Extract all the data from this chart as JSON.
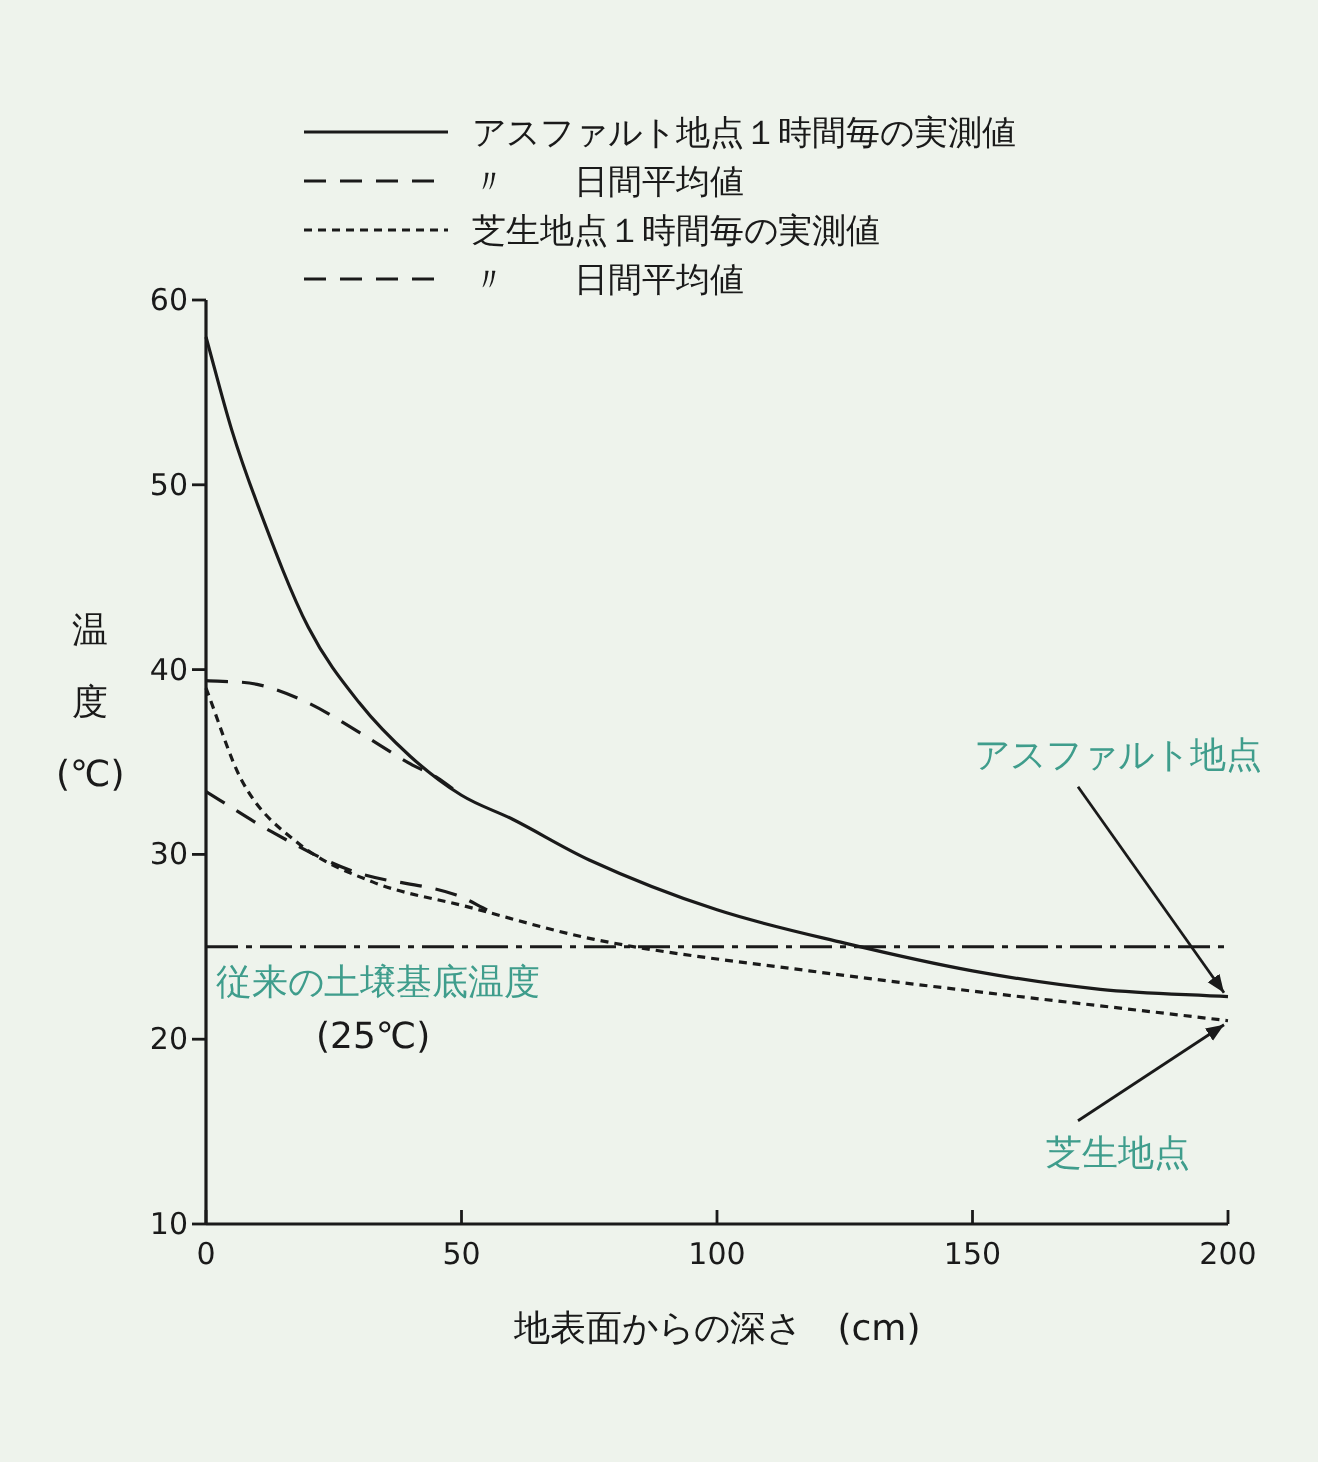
{
  "chart_data": {
    "type": "line",
    "xlabel": "地表面からの深さ　(cm)",
    "ylabel": "温度(℃)",
    "xlim": [
      0,
      200
    ],
    "xticks": [
      0,
      50,
      100,
      150,
      200
    ],
    "ylim": [
      10,
      60
    ],
    "yticks": [
      10,
      20,
      30,
      40,
      50,
      60
    ],
    "grid": false,
    "legend": "top",
    "marker": "none",
    "series": [
      {
        "name": "アスファルト地点１時間毎の実測値",
        "color": "#1a1a1a",
        "line_style": "solid",
        "x": [
          0,
          5,
          10,
          20,
          30,
          40,
          50,
          60,
          75,
          100,
          125,
          150,
          175,
          200
        ],
        "values": [
          58,
          53,
          49,
          42.3,
          38.2,
          35.3,
          33.2,
          31.9,
          29.7,
          27,
          25.2,
          23.7,
          22.7,
          22.3
        ]
      },
      {
        "name": "〃　　日間平均値",
        "color": "#1a1a1a",
        "line_style": "dashed",
        "x": [
          0,
          10,
          20,
          30,
          40,
          45,
          50
        ],
        "values": [
          39.4,
          39.2,
          38.2,
          36.6,
          34.9,
          34.2,
          33.2
        ]
      },
      {
        "name": "芝生地点１時間毎の実測値",
        "color": "#1a1a1a",
        "line_style": "dotted",
        "x": [
          0,
          7,
          17.6,
          32.7,
          50.7,
          76,
          118,
          200
        ],
        "values": [
          39,
          34,
          30.7,
          28.5,
          27.2,
          25.4,
          23.7,
          21
        ]
      },
      {
        "name": "〃　　日間平均値",
        "color": "#1a1a1a",
        "line_style": "dashed",
        "x": [
          0,
          13,
          28.6,
          49,
          55
        ],
        "values": [
          33.4,
          31.2,
          29.1,
          27.8,
          27.0
        ]
      }
    ],
    "ref_lines": [
      {
        "axis": "y",
        "value": 25,
        "label": "従来の土壌基底温度 (25℃)",
        "color": "#1a1a1a",
        "line_style": "dashed"
      }
    ],
    "annotations": [
      {
        "text": "アスファルト地点",
        "x": 200,
        "y": 22.3
      },
      {
        "text": "芝生地点",
        "x": 200,
        "y": 21
      }
    ]
  }
}
